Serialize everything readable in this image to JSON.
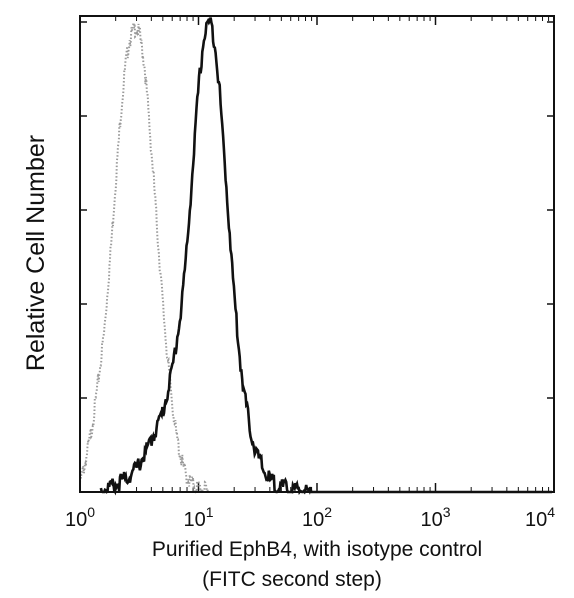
{
  "chart_data": {
    "type": "line",
    "title": "",
    "xlabel": "Purified EphB4, with isotype control",
    "xlabel_line2": "(FITC second step)",
    "ylabel": "Relative Cell Number",
    "xscale": "log",
    "xlim": [
      1,
      10000
    ],
    "ylim": [
      0,
      1
    ],
    "x_ticks": [
      {
        "value": 1,
        "base": "10",
        "exp": "0"
      },
      {
        "value": 10,
        "base": "10",
        "exp": "1"
      },
      {
        "value": 100,
        "base": "10",
        "exp": "2"
      },
      {
        "value": 1000,
        "base": "10",
        "exp": "3"
      },
      {
        "value": 10000,
        "base": "10",
        "exp": "4"
      }
    ],
    "y_ticks": [
      0,
      0.2,
      0.4,
      0.6,
      0.8,
      1.0
    ],
    "grid": false,
    "legend": "none",
    "series": [
      {
        "style": "dotted",
        "color": "#9a9a9a",
        "x": [
          1.0,
          1.1,
          1.25,
          1.4,
          1.6,
          1.8,
          2.0,
          2.2,
          2.4,
          2.6,
          2.8,
          3.0,
          3.2,
          3.5,
          3.8,
          4.2,
          4.6,
          5.0,
          5.5,
          6.0,
          6.5,
          7.0,
          7.5,
          8.0,
          9.0,
          10.0,
          12.0
        ],
        "values": [
          0.02,
          0.06,
          0.13,
          0.22,
          0.34,
          0.5,
          0.66,
          0.8,
          0.9,
          0.96,
          0.98,
          0.99,
          0.97,
          0.91,
          0.8,
          0.66,
          0.52,
          0.4,
          0.28,
          0.19,
          0.12,
          0.08,
          0.05,
          0.03,
          0.015,
          0.01,
          0.0
        ]
      },
      {
        "style": "solid",
        "color": "#111111",
        "x": [
          1.5,
          2.0,
          2.5,
          3.0,
          3.5,
          4.0,
          5.0,
          6.0,
          7.0,
          8.0,
          9.0,
          10.0,
          11.0,
          12.0,
          13.0,
          14.0,
          15.0,
          16.0,
          18.0,
          20.0,
          22.0,
          24.0,
          27.0,
          30.0,
          35.0,
          40.0,
          50.0,
          60.0,
          80.0,
          100.0
        ],
        "values": [
          0.005,
          0.015,
          0.03,
          0.05,
          0.08,
          0.11,
          0.17,
          0.26,
          0.37,
          0.52,
          0.7,
          0.86,
          0.96,
          1.0,
          0.99,
          0.94,
          0.86,
          0.76,
          0.58,
          0.42,
          0.3,
          0.22,
          0.14,
          0.09,
          0.05,
          0.025,
          0.01,
          0.005,
          0.002,
          0.0
        ]
      }
    ]
  }
}
